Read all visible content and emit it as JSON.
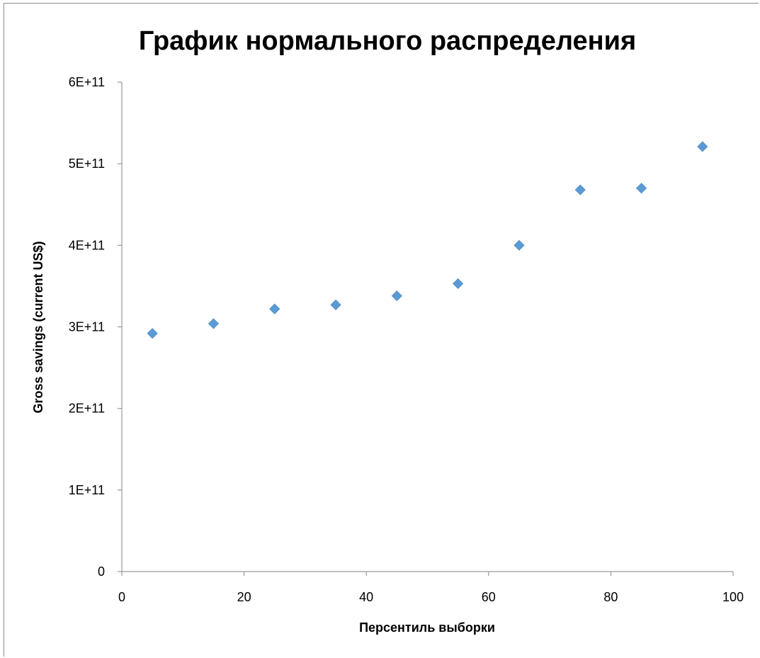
{
  "chart_data": {
    "type": "scatter",
    "title": "График нормального распределения",
    "xlabel": "Персентиль выборки",
    "ylabel": "Gross savings (current US$)",
    "xlim": [
      0,
      100
    ],
    "ylim": [
      0,
      600000000000
    ],
    "x_ticks": [
      0,
      20,
      40,
      60,
      80,
      100
    ],
    "x_tick_labels": [
      "0",
      "20",
      "40",
      "60",
      "80",
      "100"
    ],
    "y_ticks": [
      0,
      100000000000,
      200000000000,
      300000000000,
      400000000000,
      500000000000,
      600000000000
    ],
    "y_tick_labels": [
      "0",
      "1E+11",
      "2E+11",
      "3E+11",
      "4E+11",
      "5E+11",
      "6E+11"
    ],
    "grid": false,
    "legend": "none",
    "marker": "diamond",
    "marker_color": "#5b9bd5",
    "points": [
      {
        "x": 5,
        "y": 292000000000
      },
      {
        "x": 15,
        "y": 304000000000
      },
      {
        "x": 25,
        "y": 322000000000
      },
      {
        "x": 35,
        "y": 327000000000
      },
      {
        "x": 45,
        "y": 338000000000
      },
      {
        "x": 55,
        "y": 353000000000
      },
      {
        "x": 65,
        "y": 400000000000
      },
      {
        "x": 75,
        "y": 468000000000
      },
      {
        "x": 85,
        "y": 470000000000
      },
      {
        "x": 95,
        "y": 521000000000
      }
    ]
  }
}
